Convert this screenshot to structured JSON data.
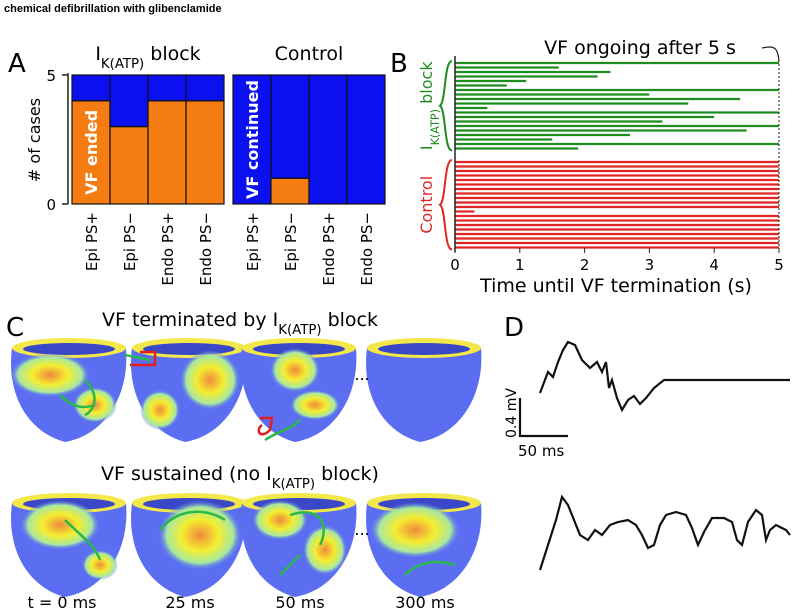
{
  "caption": "chemical defibrillation with glibenclamide",
  "panel_letters": [
    "A",
    "B",
    "C",
    "D"
  ],
  "chart_data": [
    {
      "type": "stacked_bar",
      "ylabel": "# of cases",
      "ylim": [
        0,
        5
      ],
      "yticks": [
        0,
        5
      ],
      "groups": [
        {
          "title": [
            "I",
            "K(ATP)",
            " block"
          ],
          "categories": [
            "Epi PS+",
            "Epi PS−",
            "Endo PS+",
            "Endo PS−"
          ],
          "series": [
            {
              "name": "VF ended",
              "color": "#f57c12",
              "values": [
                4,
                3,
                4,
                4
              ]
            },
            {
              "color": "#0a10f0",
              "values": [
                1,
                2,
                1,
                1
              ]
            }
          ]
        },
        {
          "title": [
            "Control"
          ],
          "categories": [
            "Epi PS+",
            "Epi PS−",
            "Endo PS+",
            "Endo PS−"
          ],
          "series": [
            {
              "color": "#f57c12",
              "values": [
                0,
                1,
                0,
                0
              ]
            },
            {
              "name": "VF continued",
              "color": "#0a10f0",
              "values": [
                5,
                4,
                5,
                5
              ]
            }
          ]
        }
      ]
    },
    {
      "type": "hlines",
      "xlabel": "Time until VF termination (s)",
      "xlim": [
        0,
        5
      ],
      "xticks": [
        0,
        1,
        2,
        3,
        4,
        5
      ],
      "annotation": "VF ongoing after 5 s",
      "series": [
        {
          "name": [
            "I",
            "K(ATP)",
            " block"
          ],
          "color": "#1e8c1e",
          "values": [
            5,
            1.6,
            2.4,
            2.2,
            1.1,
            0.8,
            5,
            3.0,
            4.4,
            3.6,
            0.5,
            5,
            4.0,
            3.2,
            5,
            4.5,
            2.7,
            1.5,
            5,
            1.9
          ]
        },
        {
          "name": [
            "Control"
          ],
          "color": "#e22424",
          "values": [
            5,
            5,
            5,
            5,
            5,
            5,
            5,
            5,
            5,
            5,
            5,
            0.3,
            5,
            5,
            5,
            5,
            5,
            5,
            5,
            5
          ]
        }
      ]
    }
  ],
  "panel_c": {
    "row_titles": [
      [
        "VF terminated by I",
        "K(ATP)",
        " block"
      ],
      [
        "VF sustained (no I",
        "K(ATP)",
        " block)"
      ]
    ],
    "time_labels": [
      "t = 0 ms",
      "25 ms",
      "50 ms",
      "300 ms"
    ],
    "ellipsis": "..."
  },
  "panel_d": {
    "scale_y": "0.4 mV",
    "scale_x": "50 ms"
  }
}
